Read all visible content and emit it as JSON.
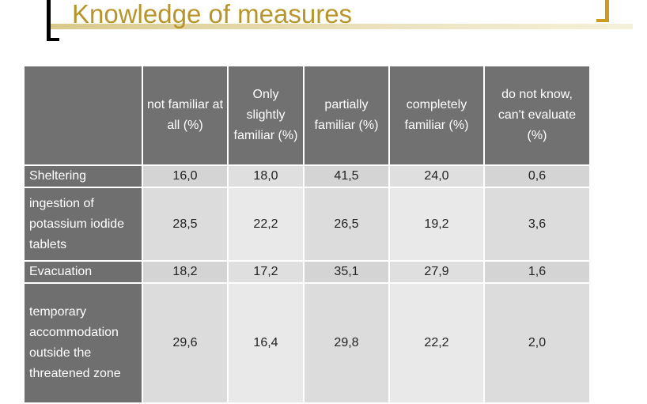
{
  "slide": {
    "title": "Knowledge of measures"
  },
  "table": {
    "headers": [
      "",
      "not familiar at all (%)",
      "Only slightly familiar (%)",
      "partially familiar (%)",
      "completely familiar (%)",
      "do not know, can't evaluate (%)"
    ],
    "rows": [
      {
        "label": "Sheltering",
        "values": [
          "16,0",
          "18,0",
          "41,5",
          "24,0",
          "0,6"
        ]
      },
      {
        "label": "ingestion of potassium iodide tablets",
        "values": [
          "28,5",
          "22,2",
          "26,5",
          "19,2",
          "3,6"
        ]
      },
      {
        "label": "Evacuation",
        "values": [
          "18,2",
          "17,2",
          "35,1",
          "27,9",
          "1,6"
        ]
      },
      {
        "label": "temporary accommodation outside the threatened zone",
        "values": [
          "29,6",
          "16,4",
          "29,8",
          "22,2",
          "2,0"
        ]
      }
    ]
  },
  "colors": {
    "title": "#b8952a",
    "header_bg": "#717171",
    "header_text": "#ffffff",
    "bracket_right": "#cc9a1e"
  }
}
